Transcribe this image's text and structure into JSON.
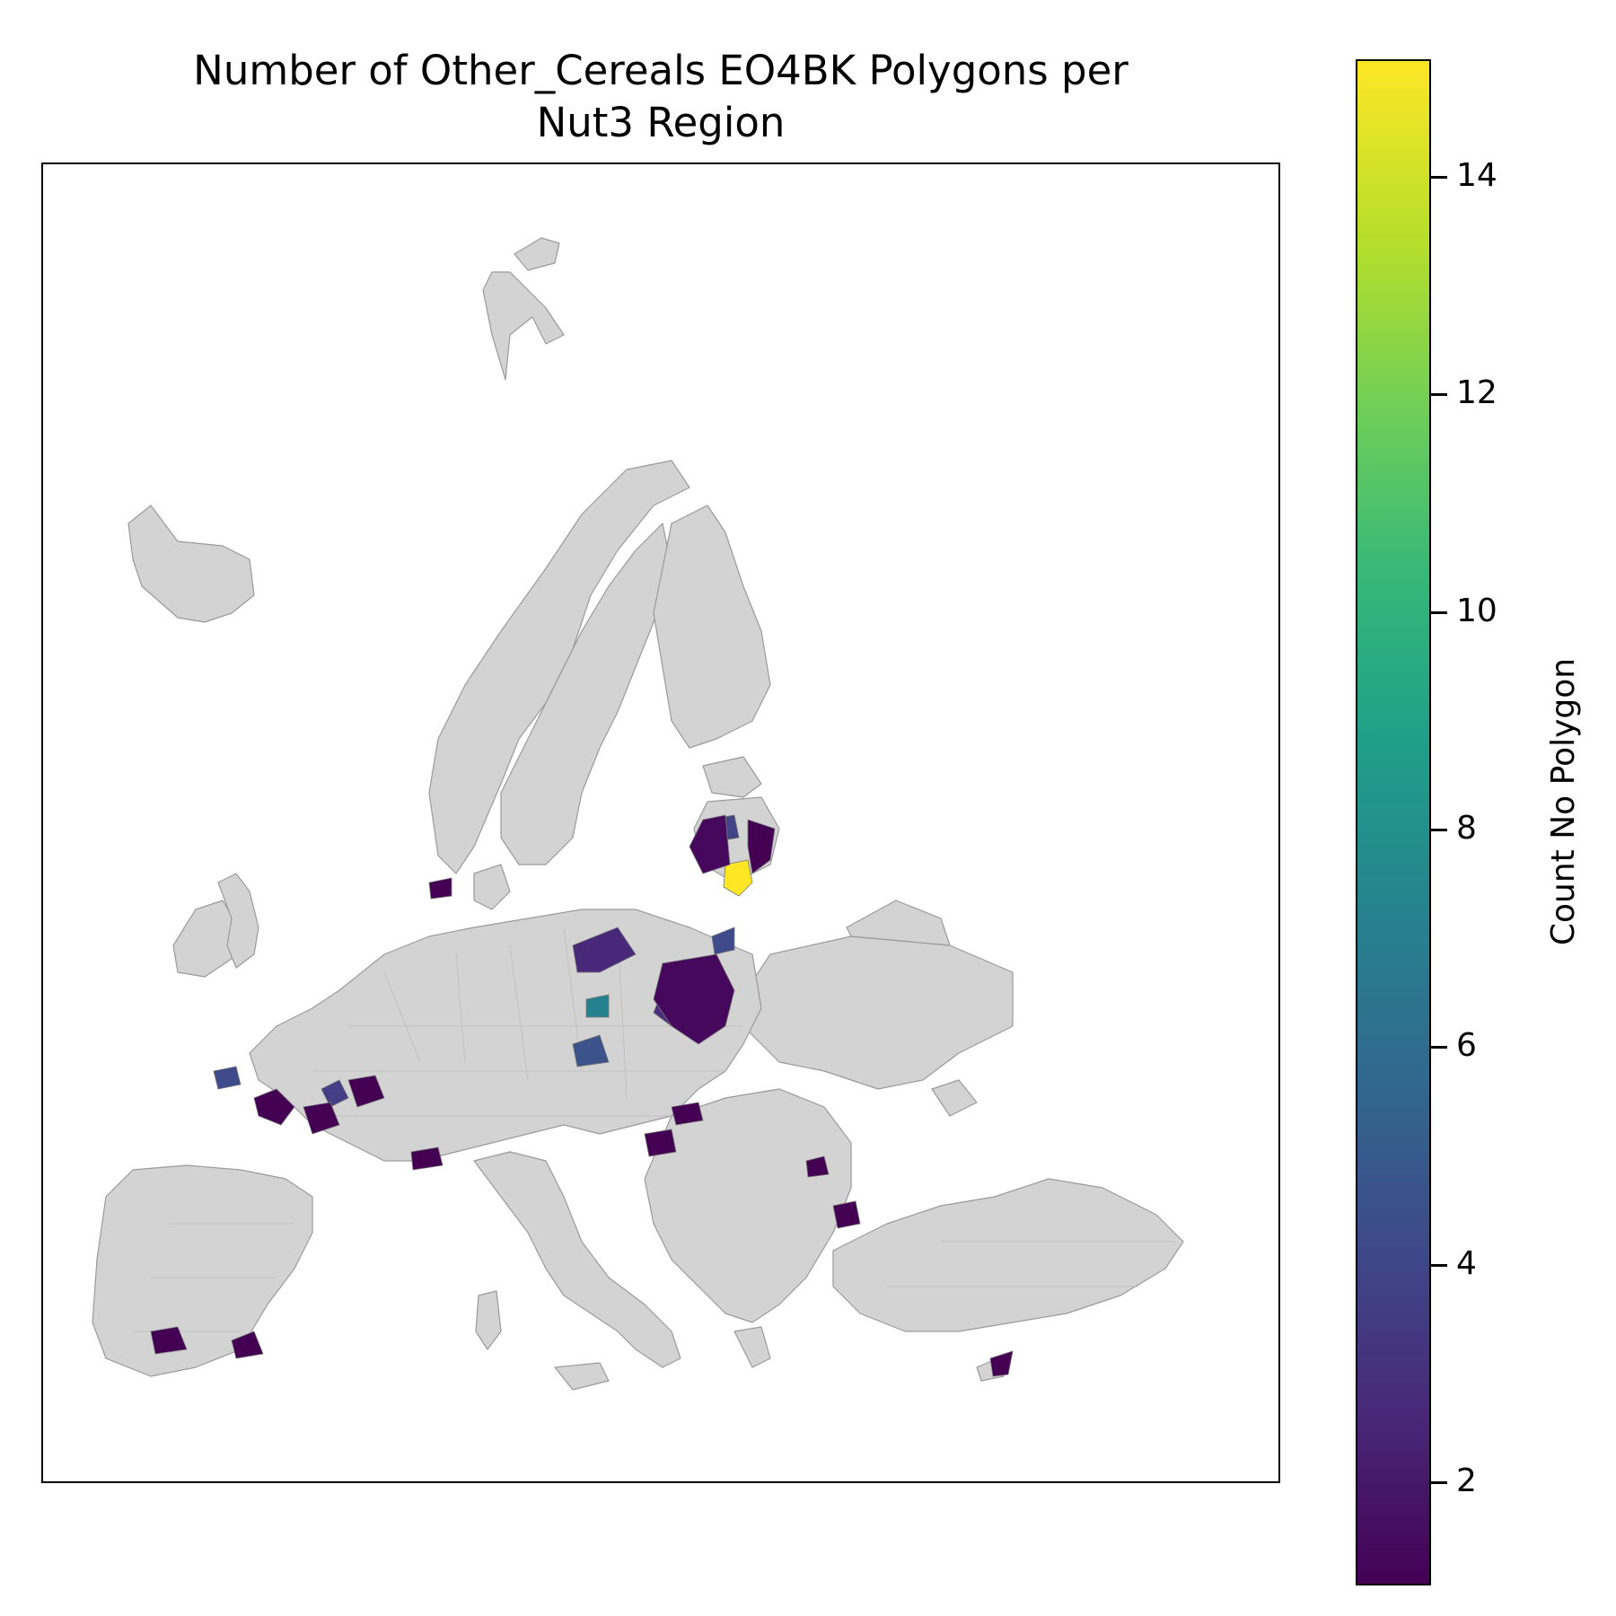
{
  "title_line1": "Number of Other_Cereals EO4BK Polygons per",
  "title_line2": "Nut3 Region",
  "colorbar": {
    "label": "Count No Polygon",
    "range": [
      1,
      15
    ],
    "colormap": "viridis",
    "ticks": [
      "2",
      "4",
      "6",
      "8",
      "10",
      "12",
      "14"
    ]
  },
  "colors": {
    "no_data_fill": "#d3d3d3",
    "region_edge": "#9a9a9a"
  },
  "legend_layout": {
    "tick_values": [
      2,
      4,
      6,
      8,
      10,
      12,
      14
    ]
  }
}
